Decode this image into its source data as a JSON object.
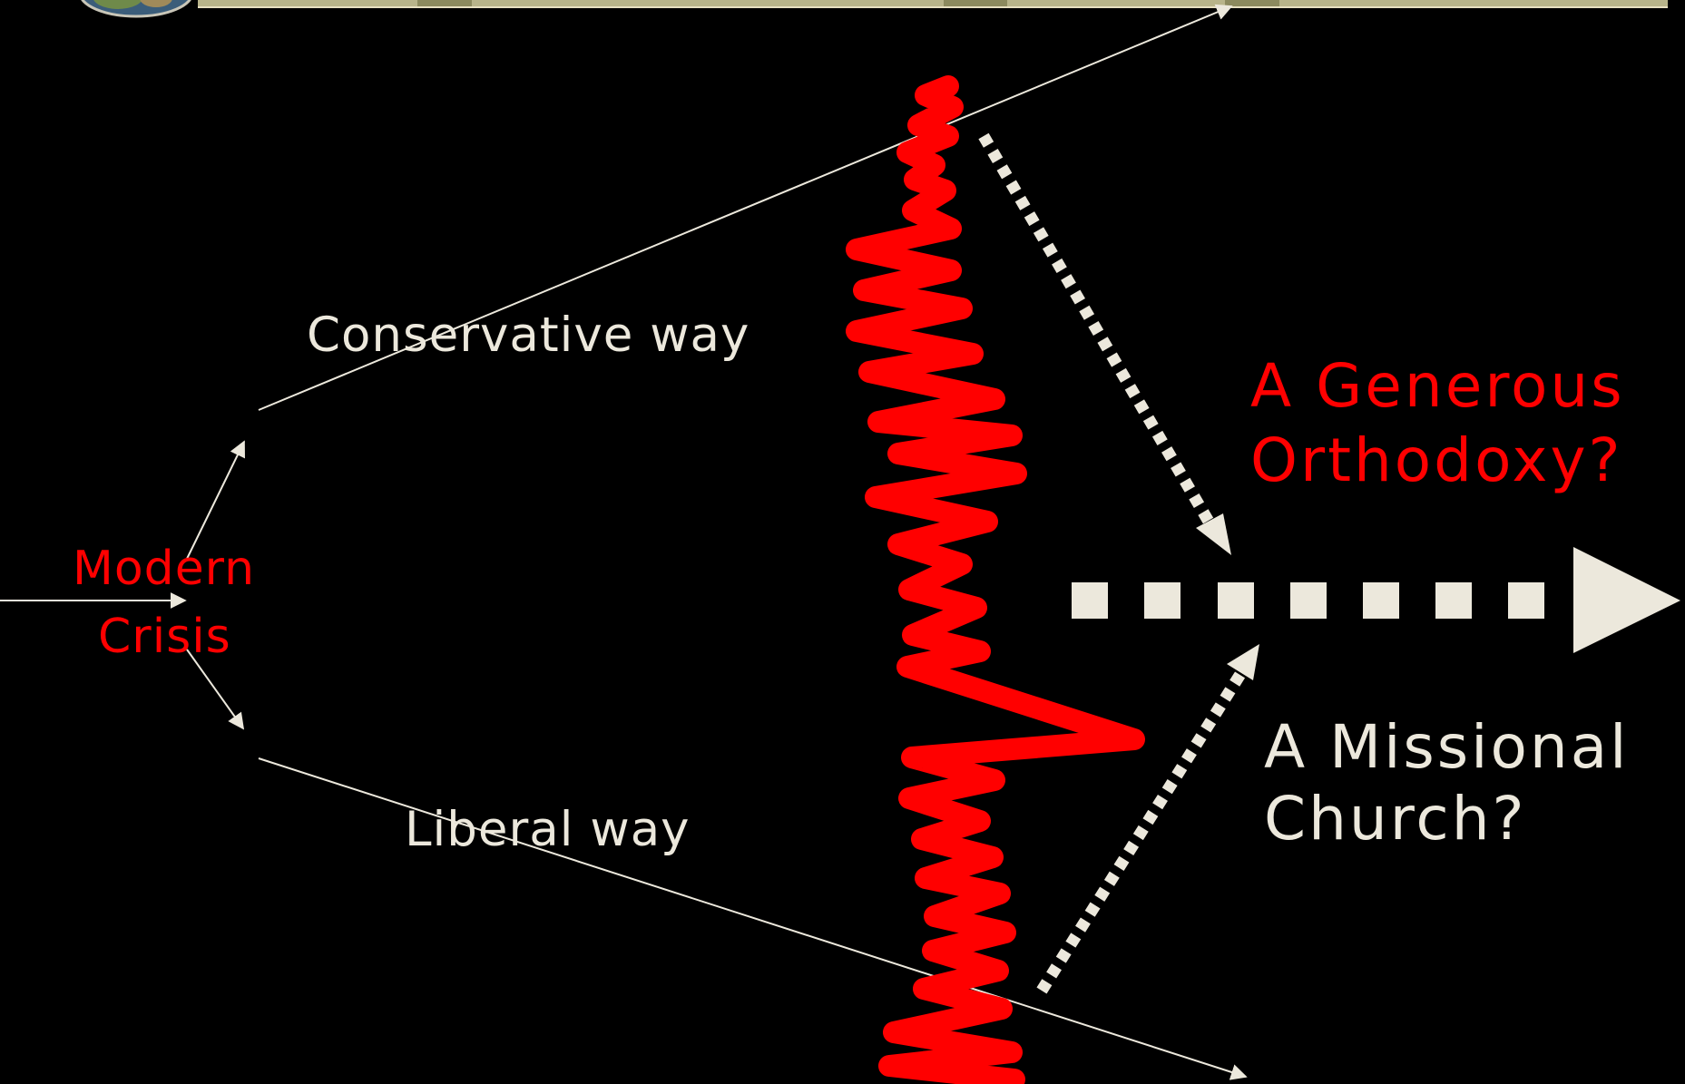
{
  "diagram": {
    "labels": {
      "conservative_way": "Conservative way",
      "liberal_way": "Liberal way",
      "modern_line1": "Modern",
      "modern_line2": "Crisis",
      "generous_line1": "A Generous",
      "generous_line2": "Orthodoxy?",
      "missional_line1": "A Missional",
      "missional_line2": "Church?"
    },
    "colors": {
      "background": "#000000",
      "foreground": "#ece8dc",
      "accent_red": "#ff0000",
      "banner": "#b8b48a"
    },
    "icons": {
      "logo": "globe-icon"
    }
  }
}
